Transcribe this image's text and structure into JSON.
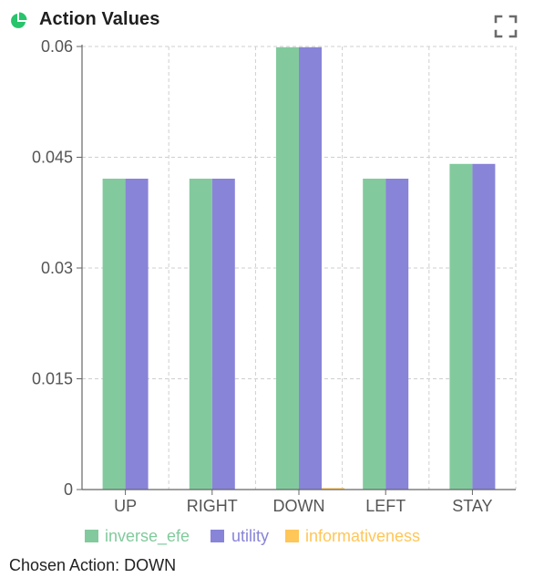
{
  "panel": {
    "title": "Action Values",
    "icons": {
      "header": "pie-chart-icon",
      "fullscreen": "fullscreen-icon"
    }
  },
  "chart_data": {
    "type": "bar",
    "title": "",
    "xlabel": "",
    "ylabel": "",
    "categories": [
      "UP",
      "RIGHT",
      "DOWN",
      "LEFT",
      "STAY"
    ],
    "series": [
      {
        "name": "inverse_efe",
        "color": "#82ca9d",
        "values": [
          0.0421,
          0.0421,
          0.0599,
          0.0421,
          0.0441
        ]
      },
      {
        "name": "utility",
        "color": "#8884d8",
        "values": [
          0.0421,
          0.0421,
          0.0599,
          0.0421,
          0.0441
        ]
      },
      {
        "name": "informativeness",
        "color": "#ffc658",
        "values": [
          0,
          0,
          0.0002,
          0,
          0
        ]
      }
    ],
    "ylim": [
      0,
      0.06
    ],
    "yticks": [
      "0",
      "0.015",
      "0.03",
      "0.045",
      "0.06"
    ],
    "grid": true,
    "legend": "bottom"
  },
  "footer": {
    "chosen_action": "Chosen Action: DOWN"
  }
}
